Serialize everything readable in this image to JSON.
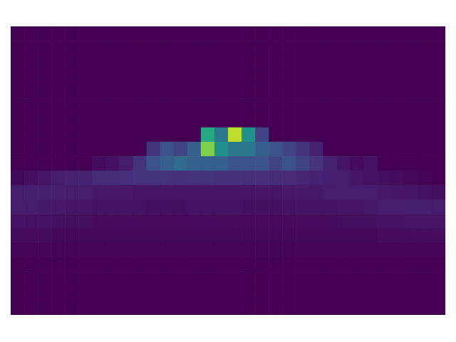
{
  "chart_data": {
    "type": "heatmap",
    "color": "viridis",
    "tick_labels": false,
    "color_range": [
      0,
      10
    ],
    "cells": [
      [
        0,
        0,
        0,
        0,
        0,
        0,
        0,
        0,
        0,
        0,
        0,
        0,
        0,
        0,
        0,
        0,
        0,
        0,
        0,
        0,
        0,
        0,
        0,
        0,
        0,
        0,
        0,
        0,
        0,
        0,
        0,
        0
      ],
      [
        0,
        0,
        0,
        0,
        0,
        0,
        0,
        0,
        0,
        0,
        0,
        0,
        0,
        0,
        0,
        0,
        0,
        0,
        0,
        0,
        0,
        0,
        0,
        0,
        0,
        0,
        0,
        0,
        0,
        0,
        0,
        0
      ],
      [
        0,
        0,
        0,
        0,
        0,
        0,
        0,
        0,
        0,
        0,
        0,
        0,
        0,
        0,
        0,
        0,
        0,
        0,
        0,
        0,
        0,
        0,
        0,
        0,
        0,
        0,
        0,
        0,
        0,
        0,
        0,
        0
      ],
      [
        0,
        0,
        0,
        0,
        0,
        0,
        0,
        0,
        0,
        0,
        0,
        0,
        0,
        0,
        0,
        0,
        0,
        0,
        0,
        0,
        0,
        0,
        0,
        0,
        0,
        0,
        0,
        0,
        0,
        0,
        0,
        0
      ],
      [
        0,
        0,
        0,
        0,
        0,
        0,
        0,
        0,
        0,
        0,
        0,
        0,
        0,
        0,
        0,
        0,
        0,
        0,
        0,
        0,
        0,
        0,
        0,
        0,
        0,
        0,
        0,
        0,
        0,
        0,
        0,
        0
      ],
      [
        0,
        0,
        0,
        0,
        0,
        0,
        0,
        0,
        0,
        0,
        0,
        0,
        0,
        0,
        0,
        0,
        0,
        0,
        0,
        0,
        0,
        0,
        0,
        0,
        0,
        0,
        0,
        0,
        0,
        0,
        0,
        0
      ],
      [
        0,
        0,
        0,
        0,
        0,
        0,
        0,
        0,
        0,
        0,
        0,
        0,
        0,
        0,
        0,
        0,
        0,
        0,
        0,
        0,
        0,
        0,
        0,
        0,
        0,
        0,
        0,
        0,
        0,
        0,
        0,
        0
      ],
      [
        0,
        0,
        0,
        0,
        0,
        0,
        0,
        0,
        0,
        0,
        0,
        0,
        0,
        0,
        6,
        4,
        9,
        5,
        2,
        0,
        0,
        0,
        0,
        0,
        0,
        0,
        0,
        0,
        0,
        0,
        0,
        0
      ],
      [
        0,
        0,
        0,
        0,
        0,
        0,
        0,
        0,
        0,
        0,
        1.5,
        2.5,
        2,
        3,
        8,
        5,
        4,
        4,
        3,
        2.5,
        2,
        1.5,
        1,
        0,
        0,
        0,
        0,
        0,
        0,
        0,
        0,
        0
      ],
      [
        0,
        0,
        0,
        0,
        0,
        0,
        0.3,
        0.5,
        0.8,
        1.5,
        2.5,
        3,
        3.5,
        3,
        3,
        3,
        2.5,
        2.5,
        2.5,
        2,
        2.5,
        2,
        1.5,
        1,
        0.6,
        0.3,
        0.5,
        0,
        0,
        0,
        0,
        0
      ],
      [
        0.2,
        0.4,
        0.6,
        0.8,
        1,
        1,
        1.2,
        1.2,
        1.3,
        1.5,
        1.5,
        1.5,
        1.4,
        1.5,
        1.5,
        1.4,
        1.4,
        1.3,
        1.3,
        1.2,
        1.2,
        1.1,
        1,
        0.9,
        0.8,
        0.6,
        0.5,
        0.4,
        0.3,
        0.2,
        0.1,
        0
      ],
      [
        0.8,
        0.9,
        0.9,
        0.9,
        0.8,
        0.8,
        0.7,
        0.7,
        0.7,
        0.6,
        0.6,
        0.6,
        0.6,
        0.6,
        0.6,
        0.6,
        0.6,
        0.6,
        0.6,
        0.6,
        0.7,
        0.7,
        0.7,
        0.8,
        0.8,
        0.8,
        0.8,
        0.7,
        0.6,
        0.6,
        0.5,
        0.4
      ],
      [
        0.8,
        0.8,
        0.7,
        0.7,
        0.6,
        0.6,
        0.5,
        0.5,
        0.5,
        0.5,
        0.4,
        0.4,
        0.4,
        0.5,
        0.5,
        0.5,
        0.5,
        0.4,
        0.4,
        0.4,
        0.5,
        0.5,
        0.5,
        0.5,
        0.6,
        0.6,
        0.7,
        0.8,
        0.8,
        0.9,
        0.9,
        0.8
      ],
      [
        0.5,
        0.5,
        0.5,
        0.4,
        0.4,
        0.4,
        0.3,
        0.3,
        0.3,
        0.3,
        0.3,
        0.3,
        0.3,
        0.3,
        0.3,
        0.3,
        0.3,
        0.3,
        0.3,
        0.3,
        0.3,
        0.3,
        0.3,
        0.3,
        0.4,
        0.4,
        0.4,
        0.5,
        0.5,
        0.6,
        0.6,
        0.6
      ],
      [
        0.3,
        0.3,
        0.3,
        0.2,
        0.2,
        0.2,
        0.2,
        0.2,
        0.2,
        0.2,
        0.2,
        0.2,
        0.2,
        0.2,
        0.2,
        0.2,
        0.2,
        0.2,
        0.2,
        0.2,
        0.2,
        0.2,
        0.2,
        0.2,
        0.2,
        0.2,
        0.2,
        0.3,
        0.3,
        0.3,
        0.3,
        0.3
      ],
      [
        0.1,
        0.1,
        0.1,
        0.1,
        0.1,
        0.1,
        0.1,
        0.1,
        0.1,
        0.1,
        0.1,
        0.1,
        0.1,
        0.1,
        0.1,
        0.1,
        0.1,
        0.1,
        0.1,
        0.1,
        0.1,
        0.1,
        0.1,
        0.1,
        0.1,
        0.1,
        0.1,
        0.1,
        0.1,
        0.1,
        0.1,
        0.1
      ],
      [
        0,
        0,
        0,
        0,
        0,
        0,
        0,
        0,
        0,
        0,
        0,
        0,
        0,
        0,
        0,
        0,
        0,
        0,
        0,
        0,
        0,
        0,
        0,
        0,
        0,
        0,
        0,
        0,
        0,
        0,
        0,
        0
      ],
      [
        0,
        0,
        0,
        0,
        0,
        0,
        0,
        0,
        0,
        0,
        0,
        0,
        0,
        0,
        0,
        0,
        0,
        0,
        0,
        0,
        0,
        0,
        0,
        0,
        0,
        0,
        0,
        0,
        0,
        0,
        0,
        0
      ],
      [
        0,
        0,
        0,
        0,
        0,
        0,
        0,
        0,
        0,
        0,
        0,
        0,
        0,
        0,
        0,
        0,
        0,
        0,
        0,
        0,
        0,
        0,
        0,
        0,
        0,
        0,
        0,
        0,
        0,
        0,
        0,
        0
      ],
      [
        0,
        0,
        0,
        0,
        0,
        0,
        0,
        0,
        0,
        0,
        0,
        0,
        0,
        0,
        0,
        0,
        0,
        0,
        0,
        0,
        0,
        0,
        0,
        0,
        0,
        0,
        0,
        0,
        0,
        0,
        0,
        0
      ]
    ]
  }
}
